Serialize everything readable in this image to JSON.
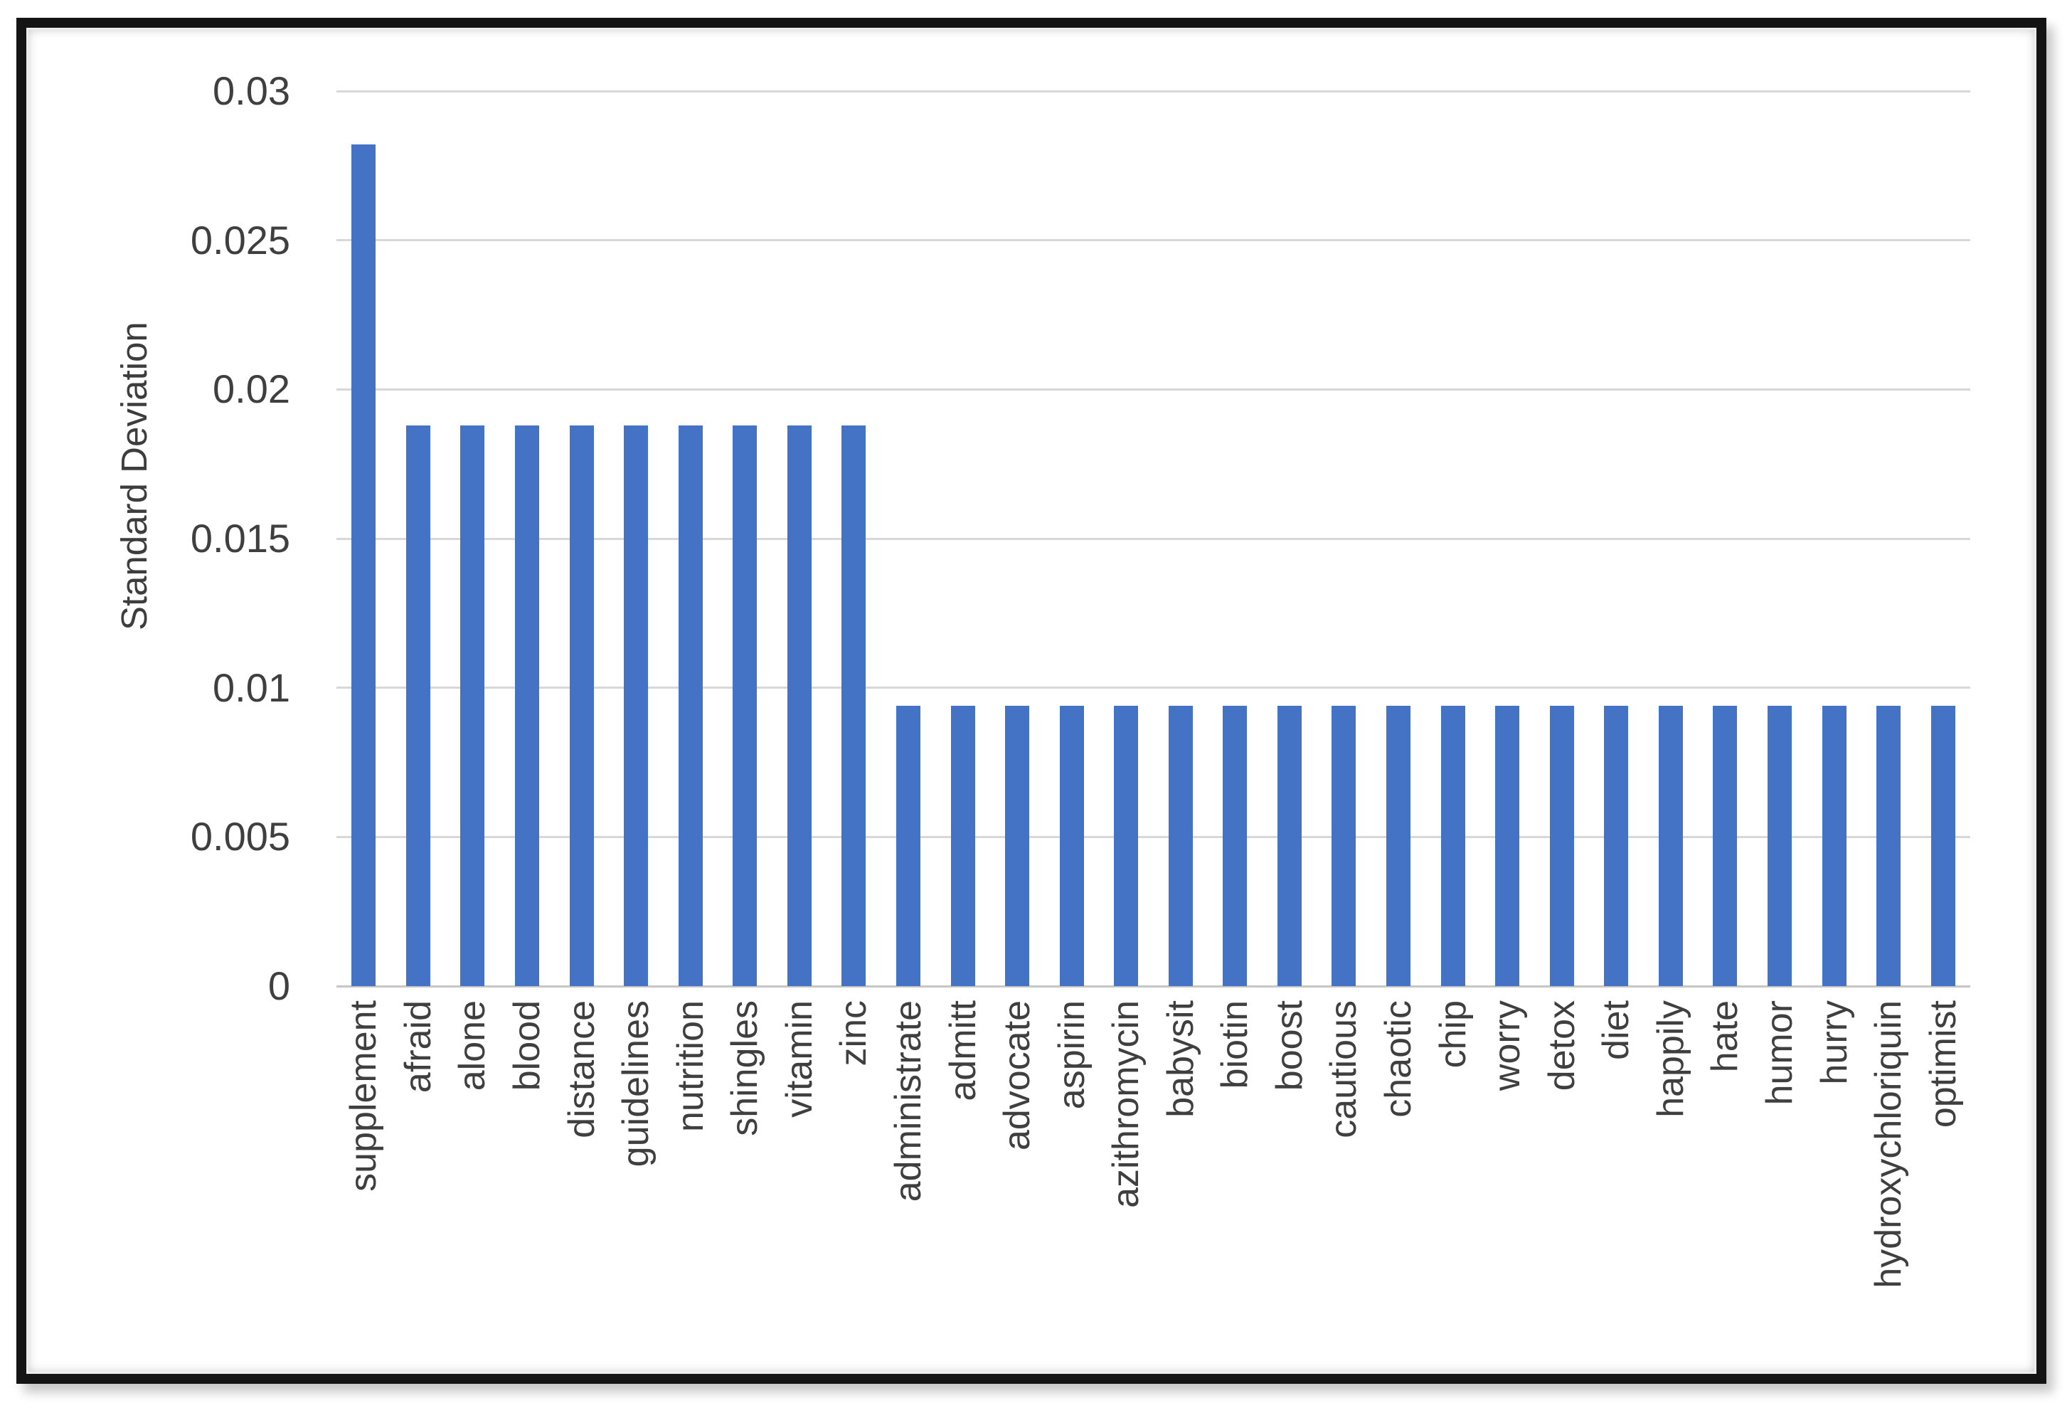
{
  "chart_data": {
    "type": "bar",
    "title": "",
    "xlabel": "",
    "ylabel": "Standard Deviation",
    "categories": [
      "supplement",
      "afraid",
      "alone",
      "blood",
      "distance",
      "guidelines",
      "nutrition",
      "shingles",
      "vitamin",
      "zinc",
      "administrate",
      "admitt",
      "advocate",
      "aspirin",
      "azithromycin",
      "babysit",
      "biotin",
      "boost",
      "cautious",
      "chaotic",
      "chip",
      "worry",
      "detox",
      "diet",
      "happily",
      "hate",
      "humor",
      "hurry",
      "hydroxychloriquin",
      "optimist"
    ],
    "values": [
      0.0282,
      0.0188,
      0.0188,
      0.0188,
      0.0188,
      0.0188,
      0.0188,
      0.0188,
      0.0188,
      0.0188,
      0.0094,
      0.0094,
      0.0094,
      0.0094,
      0.0094,
      0.0094,
      0.0094,
      0.0094,
      0.0094,
      0.0094,
      0.0094,
      0.0094,
      0.0094,
      0.0094,
      0.0094,
      0.0094,
      0.0094,
      0.0094,
      0.0094,
      0.0094
    ],
    "ylim": [
      0,
      0.03
    ],
    "ytick_values": [
      0,
      0.005,
      0.01,
      0.015,
      0.02,
      0.025,
      0.03
    ],
    "ytick_labels": [
      "0",
      "0.005",
      "0.01",
      "0.015",
      "0.02",
      "0.025",
      "0.03"
    ],
    "grid": true,
    "legend": false,
    "bar_color": "#4472c4",
    "gridline_color": "#d8d8d8",
    "axis_line_color": "#c6c6c6",
    "text_color": "#3f3f3f",
    "frame_color": "#141414",
    "background_color": "#ffffff"
  }
}
